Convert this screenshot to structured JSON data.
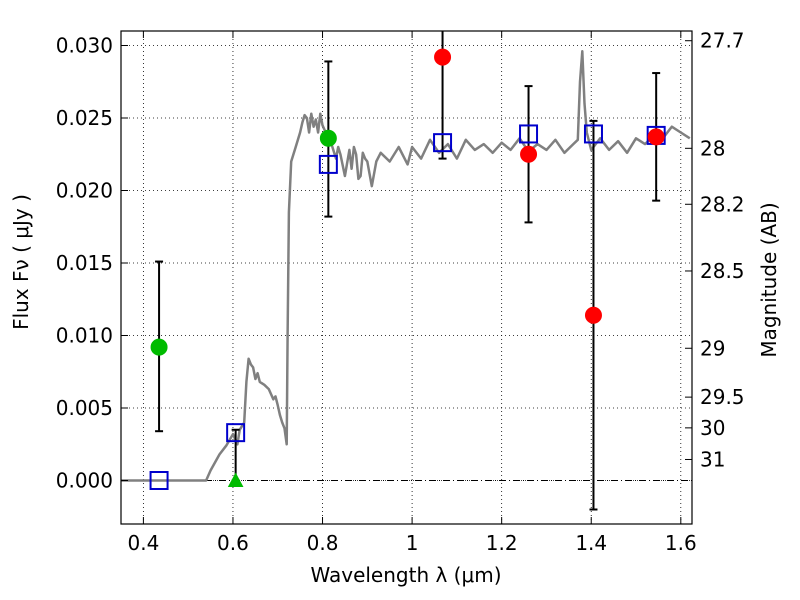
{
  "chart_data": {
    "type": "scatter",
    "xlabel": "Wavelength  λ (μm)",
    "ylabel": "Flux  Fν  ( μJy )",
    "ylabel_right": "Magnitude (AB)",
    "xlim": [
      0.35,
      1.625
    ],
    "ylim": [
      -0.003,
      0.031
    ],
    "grid": true,
    "x_ticks": [
      {
        "value": 0.4,
        "label": "0.4"
      },
      {
        "value": 0.6,
        "label": "0.6"
      },
      {
        "value": 0.8,
        "label": "0.8"
      },
      {
        "value": 1.0,
        "label": "1"
      },
      {
        "value": 1.2,
        "label": "1.2"
      },
      {
        "value": 1.4,
        "label": "1.4"
      },
      {
        "value": 1.6,
        "label": "1.6"
      }
    ],
    "y_ticks": [
      {
        "value": 0.0,
        "label": "0.000"
      },
      {
        "value": 0.005,
        "label": "0.005"
      },
      {
        "value": 0.01,
        "label": "0.010"
      },
      {
        "value": 0.015,
        "label": "0.015"
      },
      {
        "value": 0.02,
        "label": "0.020"
      },
      {
        "value": 0.025,
        "label": "0.025"
      },
      {
        "value": 0.03,
        "label": "0.030"
      }
    ],
    "mag_ticks": [
      {
        "flux": 0.03033,
        "label": "27.7"
      },
      {
        "flux": 0.02291,
        "label": "28"
      },
      {
        "flux": 0.01905,
        "label": "28.2"
      },
      {
        "flux": 0.01445,
        "label": "28.5"
      },
      {
        "flux": 0.00912,
        "label": "29"
      },
      {
        "flux": 0.00575,
        "label": "29.5"
      },
      {
        "flux": 0.00363,
        "label": "30"
      },
      {
        "flux": 0.00145,
        "label": "31"
      }
    ],
    "model_spectrum": {
      "color": "#808080",
      "x": [
        0.35,
        0.54,
        0.55,
        0.57,
        0.585,
        0.6,
        0.61,
        0.615,
        0.625,
        0.63,
        0.635,
        0.64,
        0.645,
        0.65,
        0.655,
        0.66,
        0.67,
        0.68,
        0.69,
        0.695,
        0.7,
        0.705,
        0.71,
        0.715,
        0.72,
        0.722,
        0.725,
        0.73,
        0.74,
        0.745,
        0.75,
        0.755,
        0.76,
        0.765,
        0.77,
        0.775,
        0.78,
        0.785,
        0.79,
        0.795,
        0.8,
        0.81,
        0.82,
        0.83,
        0.835,
        0.84,
        0.85,
        0.86,
        0.865,
        0.87,
        0.875,
        0.88,
        0.885,
        0.89,
        0.895,
        0.9,
        0.91,
        0.92,
        0.93,
        0.95,
        0.97,
        0.99,
        1.0,
        1.02,
        1.04,
        1.06,
        1.08,
        1.1,
        1.12,
        1.14,
        1.16,
        1.18,
        1.2,
        1.22,
        1.24,
        1.26,
        1.28,
        1.3,
        1.32,
        1.34,
        1.36,
        1.37,
        1.375,
        1.38,
        1.385,
        1.39,
        1.4,
        1.42,
        1.44,
        1.46,
        1.48,
        1.5,
        1.52,
        1.54,
        1.56,
        1.58,
        1.6,
        1.62
      ],
      "y": [
        0.0,
        0.0,
        0.0007,
        0.0018,
        0.0024,
        0.0032,
        0.0025,
        0.0035,
        0.004,
        0.0068,
        0.0084,
        0.008,
        0.0078,
        0.007,
        0.0074,
        0.0068,
        0.0066,
        0.0063,
        0.0056,
        0.0058,
        0.0052,
        0.0045,
        0.004,
        0.0036,
        0.0025,
        0.01,
        0.0185,
        0.022,
        0.023,
        0.0235,
        0.024,
        0.0247,
        0.0252,
        0.025,
        0.024,
        0.0253,
        0.0244,
        0.0249,
        0.024,
        0.0253,
        0.0245,
        0.0238,
        0.0232,
        0.0222,
        0.023,
        0.0225,
        0.021,
        0.0228,
        0.0215,
        0.023,
        0.0225,
        0.0208,
        0.021,
        0.0226,
        0.0222,
        0.022,
        0.0203,
        0.022,
        0.0226,
        0.022,
        0.023,
        0.0218,
        0.023,
        0.0222,
        0.0235,
        0.0226,
        0.0232,
        0.0222,
        0.0235,
        0.0228,
        0.0232,
        0.0226,
        0.0233,
        0.0228,
        0.0236,
        0.0227,
        0.0232,
        0.0228,
        0.0235,
        0.0226,
        0.0232,
        0.0235,
        0.0275,
        0.0296,
        0.026,
        0.024,
        0.0228,
        0.0236,
        0.0228,
        0.0234,
        0.0226,
        0.0236,
        0.0232,
        0.0238,
        0.0236,
        0.0244,
        0.024,
        0.0236
      ]
    },
    "series": [
      {
        "marker": "circle",
        "color": "#00bb00",
        "points": [
          {
            "x": 0.435,
            "y": 0.0092,
            "err_lo": 0.0034,
            "err_hi": 0.0151
          },
          {
            "x": 0.813,
            "y": 0.0236,
            "err_lo": 0.0182,
            "err_hi": 0.0289
          }
        ]
      },
      {
        "marker": "triangle",
        "color": "#00bb00",
        "points": [
          {
            "x": 0.606,
            "y": 0.0,
            "err_lo": 0.0,
            "err_hi": 0.0035
          }
        ]
      },
      {
        "marker": "circle",
        "color": "#ff0000",
        "points": [
          {
            "x": 1.068,
            "y": 0.0292,
            "err_lo": 0.0222,
            "err_hi": 0.0312
          },
          {
            "x": 1.26,
            "y": 0.0225,
            "err_lo": 0.0178,
            "err_hi": 0.0272
          },
          {
            "x": 1.405,
            "y": 0.0114,
            "err_lo": -0.002,
            "err_hi": 0.0248
          },
          {
            "x": 1.545,
            "y": 0.0237,
            "err_lo": 0.0193,
            "err_hi": 0.0281
          }
        ]
      },
      {
        "marker": "square",
        "color": "#0000cc",
        "points": [
          {
            "x": 0.435,
            "y": 0.0
          },
          {
            "x": 0.606,
            "y": 0.0033
          },
          {
            "x": 0.813,
            "y": 0.0218
          },
          {
            "x": 1.068,
            "y": 0.0233
          },
          {
            "x": 1.26,
            "y": 0.0239
          },
          {
            "x": 1.405,
            "y": 0.0239
          },
          {
            "x": 1.545,
            "y": 0.0238
          }
        ]
      }
    ]
  }
}
